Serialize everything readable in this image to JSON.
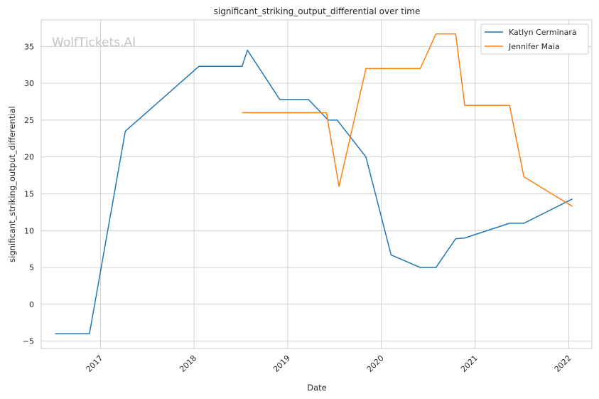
{
  "chart_data": {
    "type": "line",
    "title": "significant_striking_output_differential over time",
    "xlabel": "Date",
    "ylabel": "significant_striking_output_differential",
    "watermark": "WolfTickets.AI",
    "x_ticks": [
      "2017",
      "2018",
      "2019",
      "2020",
      "2021",
      "2022"
    ],
    "y_ticks": [
      -5,
      0,
      5,
      10,
      15,
      20,
      25,
      30,
      35
    ],
    "xlim": [
      "2016-05-15",
      "2022-04-01"
    ],
    "ylim": [
      -6,
      38.6
    ],
    "grid": true,
    "legend_position": "top-right",
    "series": [
      {
        "name": "Katlyn Cerminara",
        "color": "#1f77b4",
        "points": [
          [
            "2016-07-08",
            -4.0
          ],
          [
            "2016-11-19",
            -4.0
          ],
          [
            "2017-04-08",
            23.5
          ],
          [
            "2018-01-20",
            32.3
          ],
          [
            "2018-07-07",
            32.3
          ],
          [
            "2018-07-28",
            34.5
          ],
          [
            "2018-12-01",
            27.8
          ],
          [
            "2019-03-23",
            27.8
          ],
          [
            "2019-06-08",
            25.0
          ],
          [
            "2019-07-13",
            25.0
          ],
          [
            "2019-11-02",
            20.0
          ],
          [
            "2020-02-08",
            6.7
          ],
          [
            "2020-06-01",
            5.0
          ],
          [
            "2020-08-01",
            5.0
          ],
          [
            "2020-10-17",
            8.9
          ],
          [
            "2020-11-21",
            9.0
          ],
          [
            "2021-05-15",
            11.0
          ],
          [
            "2021-07-10",
            11.0
          ],
          [
            "2022-01-15",
            14.3
          ]
        ]
      },
      {
        "name": "Jennifer Maia",
        "color": "#ff7f0e",
        "points": [
          [
            "2018-07-07",
            26.0
          ],
          [
            "2019-06-01",
            26.0
          ],
          [
            "2019-07-20",
            16.0
          ],
          [
            "2019-11-02",
            32.0
          ],
          [
            "2020-06-01",
            32.0
          ],
          [
            "2020-08-01",
            36.7
          ],
          [
            "2020-10-17",
            36.7
          ],
          [
            "2020-11-21",
            27.0
          ],
          [
            "2021-05-15",
            27.0
          ],
          [
            "2021-07-10",
            17.3
          ],
          [
            "2022-01-15",
            13.3
          ]
        ]
      }
    ]
  }
}
